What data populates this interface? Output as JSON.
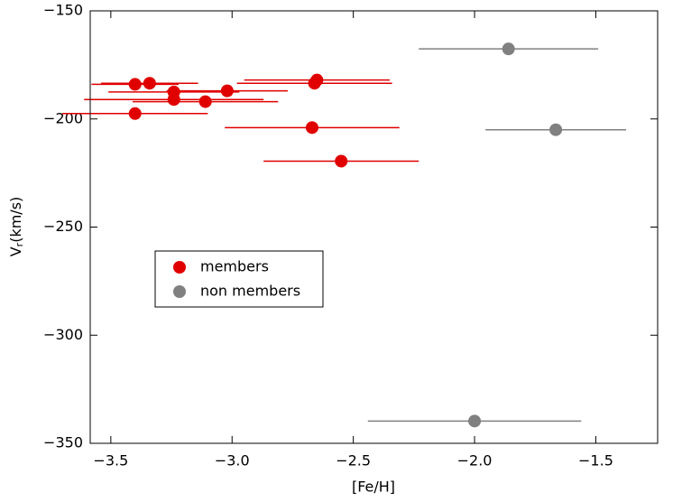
{
  "chart_data": {
    "type": "scatter",
    "xlabel": "[Fe/H]",
    "ylabel": {
      "main": "V",
      "sub": "r",
      "unit": "(km/s)"
    },
    "xlim": [
      -3.585,
      -1.245
    ],
    "ylim": [
      -350,
      -150
    ],
    "xticks": [
      {
        "value": -3.5,
        "label": "−3.5"
      },
      {
        "value": -3.0,
        "label": "−3.0"
      },
      {
        "value": -2.5,
        "label": "−2.5"
      },
      {
        "value": -2.0,
        "label": "−2.0"
      },
      {
        "value": -1.5,
        "label": "−1.5"
      }
    ],
    "yticks": [
      {
        "value": -350,
        "label": "−350"
      },
      {
        "value": -300,
        "label": "−300"
      },
      {
        "value": -250,
        "label": "−250"
      },
      {
        "value": -200,
        "label": "−200"
      },
      {
        "value": -150,
        "label": "−150"
      }
    ],
    "legend": "center left",
    "series": [
      {
        "name": "members",
        "color": "#e00000",
        "x": [
          -3.4,
          -3.34,
          -3.24,
          -3.24,
          -3.11,
          -3.02,
          -3.4,
          -2.66,
          -2.65,
          -2.67,
          -2.55
        ],
        "y": [
          -184,
          -183.5,
          -187.5,
          -191,
          -192,
          -187,
          -197.5,
          -183.5,
          -182,
          -204,
          -219.5
        ],
        "xerr": [
          0.18,
          0.2,
          0.27,
          0.37,
          0.3,
          0.25,
          0.3,
          0.32,
          0.3,
          0.36,
          0.32
        ]
      },
      {
        "name": "non members",
        "color": "#808080",
        "x": [
          -1.86,
          -1.665,
          -2.0
        ],
        "y": [
          -167.6,
          -205,
          -339.7
        ],
        "xerr": [
          0.37,
          0.29,
          0.44
        ]
      }
    ]
  }
}
